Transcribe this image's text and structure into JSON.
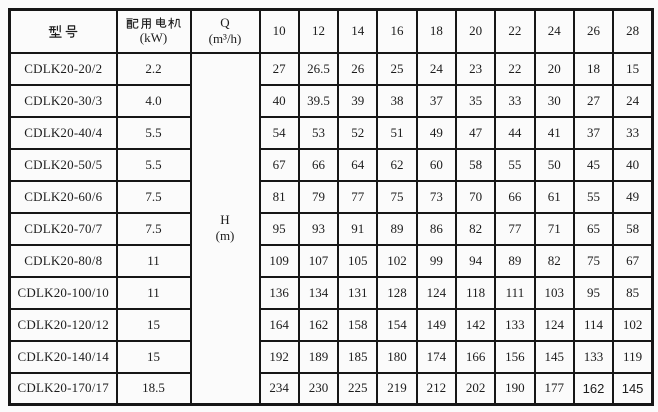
{
  "page": {
    "background": "#fbfbfb",
    "border_color": "#161616",
    "text_color": "#1c1c1c"
  },
  "table": {
    "header": {
      "model_label": "型号",
      "motor_label": "配用电机",
      "motor_unit": "(kW)",
      "flow_label": "Q",
      "flow_unit": "(m³/h)",
      "flow_columns": [
        "10",
        "12",
        "14",
        "16",
        "18",
        "20",
        "22",
        "24",
        "26",
        "28"
      ],
      "head_label": "H",
      "head_unit": "(m)"
    },
    "rows": [
      {
        "model": "CDLK20-20/2",
        "kw": "2.2",
        "head": [
          "27",
          "26.5",
          "26",
          "25",
          "24",
          "23",
          "22",
          "20",
          "18",
          "15"
        ]
      },
      {
        "model": "CDLK20-30/3",
        "kw": "4.0",
        "head": [
          "40",
          "39.5",
          "39",
          "38",
          "37",
          "35",
          "33",
          "30",
          "27",
          "24"
        ]
      },
      {
        "model": "CDLK20-40/4",
        "kw": "5.5",
        "head": [
          "54",
          "53",
          "52",
          "51",
          "49",
          "47",
          "44",
          "41",
          "37",
          "33"
        ]
      },
      {
        "model": "CDLK20-50/5",
        "kw": "5.5",
        "head": [
          "67",
          "66",
          "64",
          "62",
          "60",
          "58",
          "55",
          "50",
          "45",
          "40"
        ]
      },
      {
        "model": "CDLK20-60/6",
        "kw": "7.5",
        "head": [
          "81",
          "79",
          "77",
          "75",
          "73",
          "70",
          "66",
          "61",
          "55",
          "49"
        ]
      },
      {
        "model": "CDLK20-70/7",
        "kw": "7.5",
        "head": [
          "95",
          "93",
          "91",
          "89",
          "86",
          "82",
          "77",
          "71",
          "65",
          "58"
        ]
      },
      {
        "model": "CDLK20-80/8",
        "kw": "11",
        "head": [
          "109",
          "107",
          "105",
          "102",
          "99",
          "94",
          "89",
          "82",
          "75",
          "67"
        ]
      },
      {
        "model": "CDLK20-100/10",
        "kw": "11",
        "head": [
          "136",
          "134",
          "131",
          "128",
          "124",
          "118",
          "111",
          "103",
          "95",
          "85"
        ]
      },
      {
        "model": "CDLK20-120/12",
        "kw": "15",
        "head": [
          "164",
          "162",
          "158",
          "154",
          "149",
          "142",
          "133",
          "124",
          "114",
          "102"
        ]
      },
      {
        "model": "CDLK20-140/14",
        "kw": "15",
        "head": [
          "192",
          "189",
          "185",
          "180",
          "174",
          "166",
          "156",
          "145",
          "133",
          "119"
        ]
      },
      {
        "model": "CDLK20-170/17",
        "kw": "18.5",
        "head": [
          "234",
          "230",
          "225",
          "219",
          "212",
          "202",
          "190",
          "177",
          "162",
          "145"
        ]
      }
    ]
  }
}
